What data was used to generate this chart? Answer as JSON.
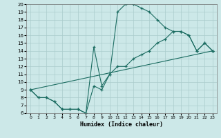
{
  "xlabel": "Humidex (Indice chaleur)",
  "bg_color": "#cce8e8",
  "grid_color": "#aacccc",
  "line_color": "#1a6b60",
  "xlim": [
    -0.5,
    23.5
  ],
  "ylim": [
    6,
    20
  ],
  "yticks": [
    6,
    7,
    8,
    9,
    10,
    11,
    12,
    13,
    14,
    15,
    16,
    17,
    18,
    19,
    20
  ],
  "xticks": [
    0,
    1,
    2,
    3,
    4,
    5,
    6,
    7,
    8,
    9,
    10,
    11,
    12,
    13,
    14,
    15,
    16,
    17,
    18,
    19,
    20,
    21,
    22,
    23
  ],
  "series": [
    {
      "x": [
        0,
        1,
        2,
        3,
        4,
        5,
        6,
        7,
        8,
        9,
        10,
        11,
        12,
        13,
        14,
        15,
        16,
        17,
        18,
        19,
        20,
        21,
        22,
        23
      ],
      "y": [
        9,
        8,
        8,
        7.5,
        6.5,
        6.5,
        6.5,
        6,
        9.5,
        9,
        11,
        19,
        20,
        20,
        19.5,
        19,
        18,
        17,
        16.5,
        16.5,
        16,
        14,
        15,
        14
      ]
    },
    {
      "x": [
        0,
        1,
        2,
        3,
        4,
        5,
        6,
        7,
        8,
        9,
        10,
        11,
        12,
        13,
        14,
        15,
        16,
        17,
        18,
        19,
        20,
        21,
        22,
        23
      ],
      "y": [
        9,
        8,
        8,
        7.5,
        6.5,
        6.5,
        6.5,
        6,
        14.5,
        9.5,
        11,
        12,
        12,
        13,
        13.5,
        14,
        15,
        15.5,
        16.5,
        16.5,
        16,
        14,
        15,
        14
      ]
    },
    {
      "x": [
        0,
        23
      ],
      "y": [
        9,
        14
      ]
    }
  ]
}
